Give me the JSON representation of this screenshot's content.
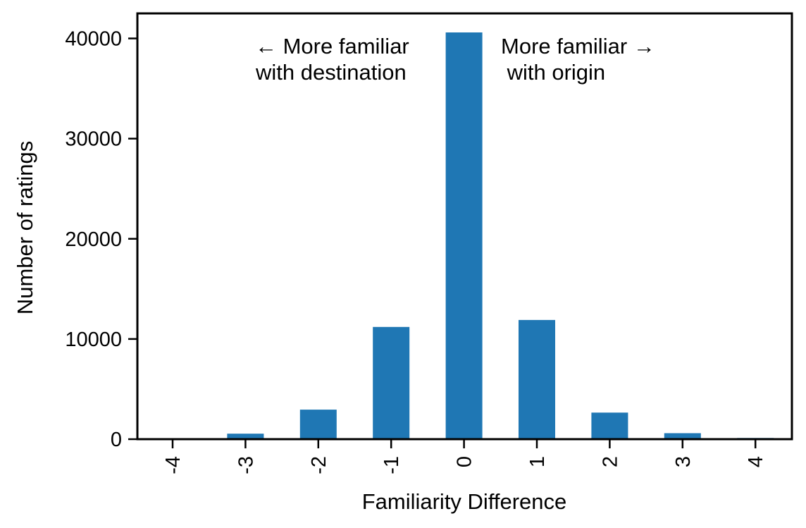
{
  "chart_data": {
    "type": "bar",
    "title": "",
    "xlabel": "Familiarity Difference",
    "ylabel": "Number of ratings",
    "categories": [
      "-4",
      "-3",
      "-2",
      "-1",
      "0",
      "1",
      "2",
      "3",
      "4"
    ],
    "values": [
      100,
      550,
      2950,
      11200,
      40600,
      11900,
      2650,
      600,
      120
    ],
    "ylim": [
      0,
      42500
    ],
    "yticks": [
      0,
      10000,
      20000,
      30000,
      40000
    ],
    "ytick_labels": [
      "0",
      "10000",
      "20000",
      "30000",
      "40000"
    ],
    "grid": false,
    "legend": "none",
    "bar_color": "#1f77b4",
    "annotations": {
      "left_line1": "←  More familiar",
      "left_line2": "with destination",
      "right_line1": "More familiar  →",
      "right_line2": " with origin"
    }
  }
}
